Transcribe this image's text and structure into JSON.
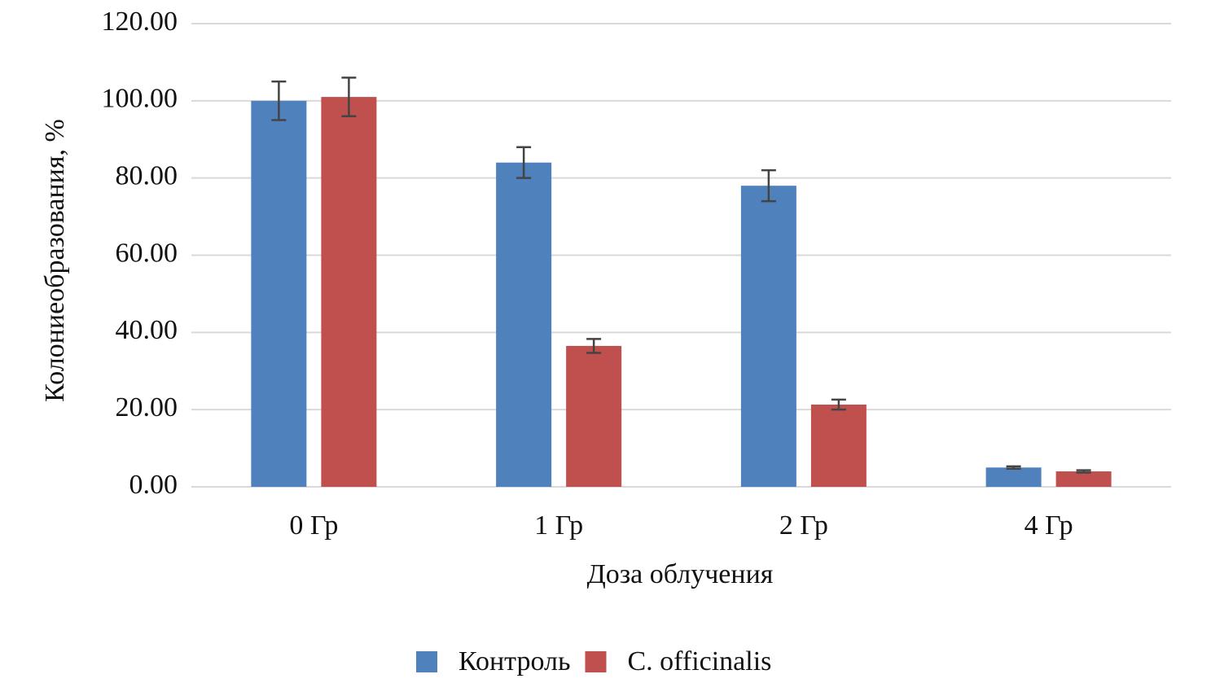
{
  "chart_data": {
    "type": "bar",
    "x_label": "Доза облучения",
    "y_label": "Колониеобразования, %",
    "categories": [
      "0 Гр",
      "1 Гр",
      "2 Гр",
      "4 Гр"
    ],
    "series": [
      {
        "name": "Контроль",
        "color": "#4f81bd",
        "values": [
          100,
          84,
          78,
          5
        ],
        "errors": [
          5,
          4,
          4,
          0.3
        ]
      },
      {
        "name": "C. officinalis",
        "color": "#c0504d",
        "values": [
          101,
          36.5,
          21.3,
          4
        ],
        "errors": [
          5,
          1.8,
          1.3,
          0.3
        ]
      }
    ],
    "ylim": [
      0,
      120
    ],
    "yticks": [
      {
        "value": 0,
        "label": "0.00"
      },
      {
        "value": 20,
        "label": "20.00"
      },
      {
        "value": 40,
        "label": "40.00"
      },
      {
        "value": 60,
        "label": "60.00"
      },
      {
        "value": 80,
        "label": "80.00"
      },
      {
        "value": 100,
        "label": "100.00"
      },
      {
        "value": 120,
        "label": "120.00"
      }
    ],
    "grid": true,
    "legend": "bottom"
  }
}
